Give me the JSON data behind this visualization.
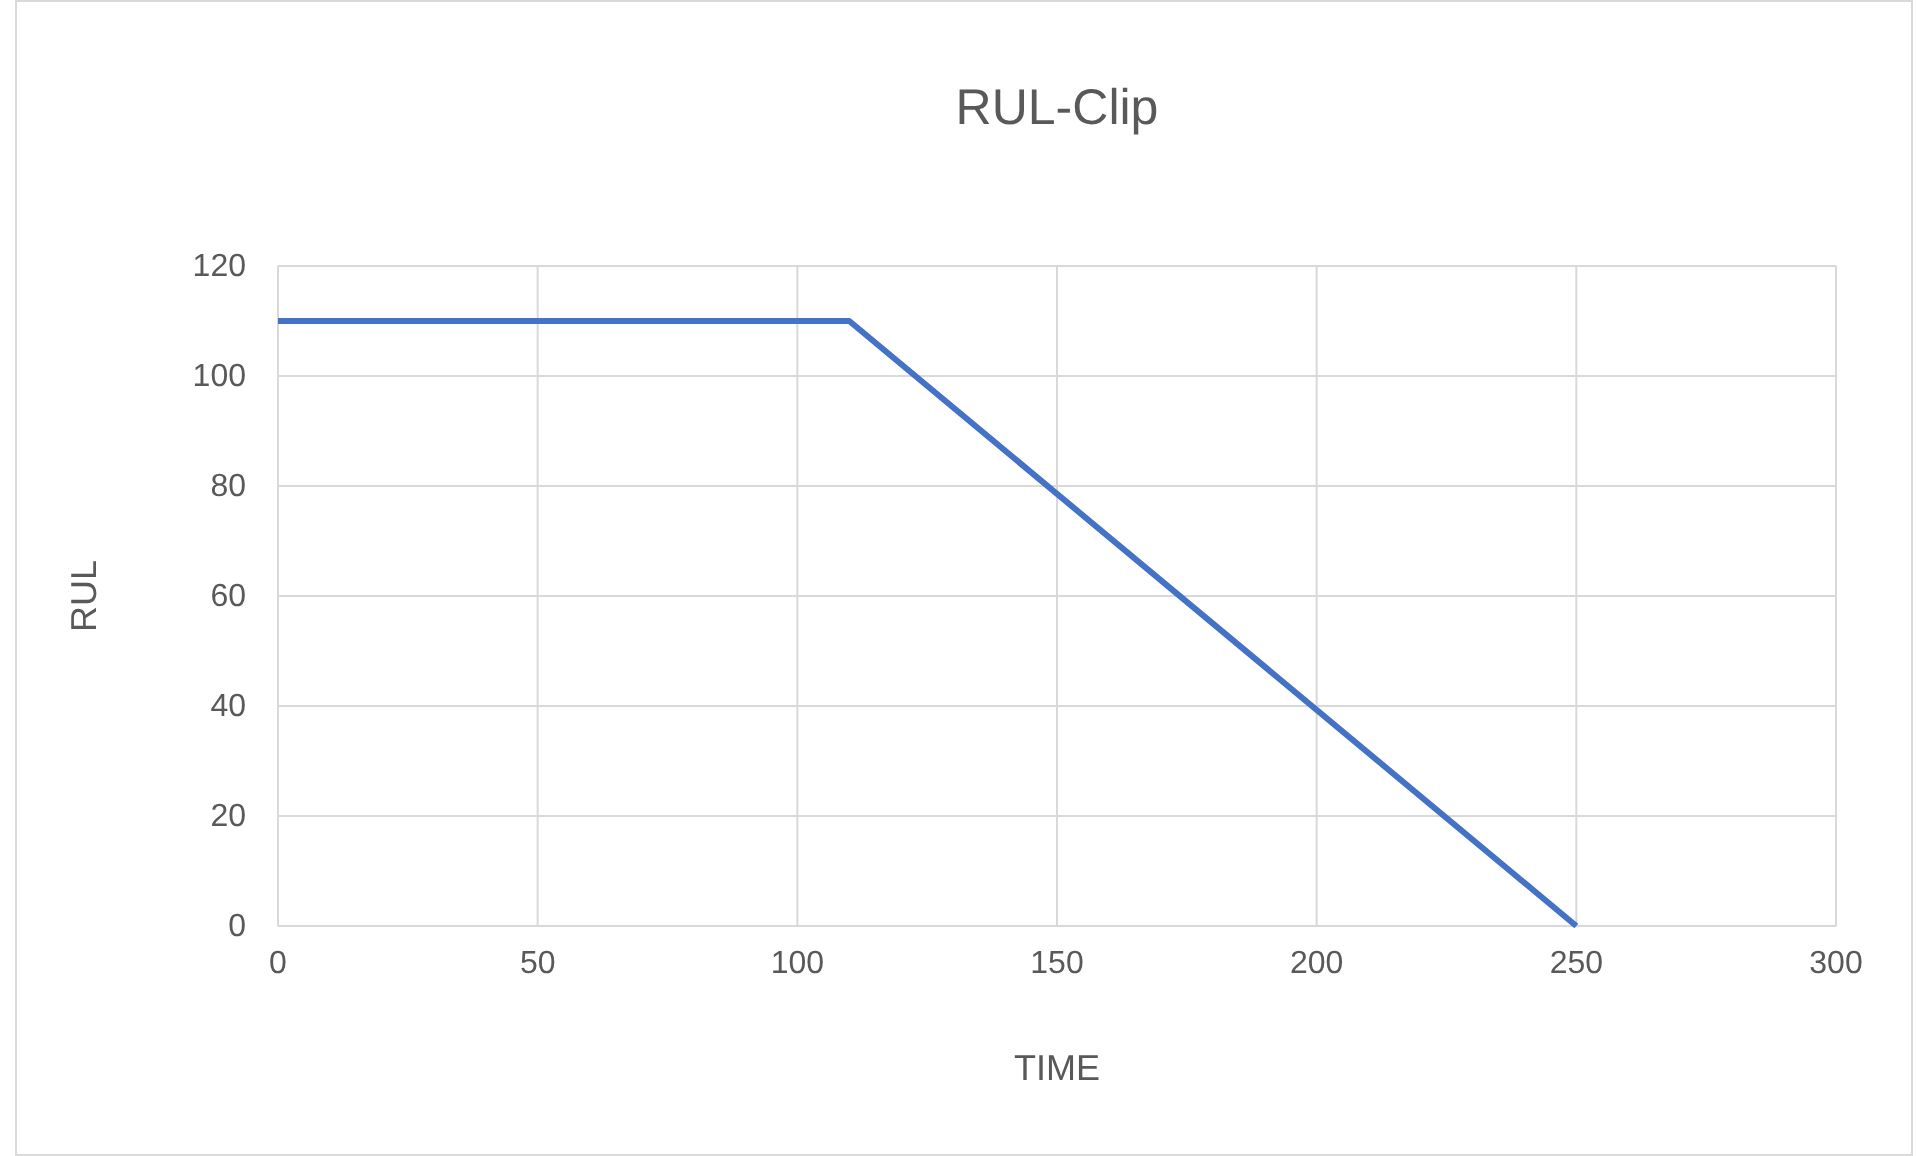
{
  "chart_data": {
    "type": "line",
    "title": "RUL-Clip",
    "xlabel": "TIME",
    "ylabel": "RUL",
    "x": [
      0,
      110,
      250
    ],
    "series": [
      {
        "color": "#4472c4",
        "values": [
          110,
          110,
          0
        ]
      }
    ],
    "xlim": [
      0,
      300
    ],
    "xticks": [
      0,
      50,
      100,
      150,
      200,
      250,
      300
    ],
    "ylim": [
      0,
      120
    ],
    "yticks": [
      0,
      20,
      40,
      60,
      80,
      100,
      120
    ],
    "grid": true,
    "marker": "none",
    "line_style": "solid"
  }
}
